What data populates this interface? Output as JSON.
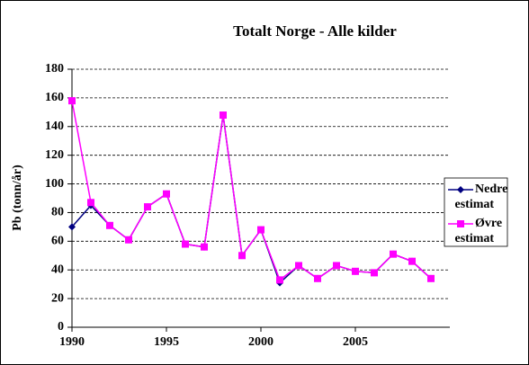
{
  "chart_data": {
    "type": "line",
    "title": "Totalt Norge - Alle kilder",
    "ylabel": "Pb (tonn/år)",
    "x": [
      1990,
      1991,
      1992,
      1993,
      1994,
      1995,
      1996,
      1997,
      1998,
      1999,
      2000,
      2001,
      2002,
      2003,
      2004,
      2005,
      2006,
      2007,
      2008,
      2009
    ],
    "series": [
      {
        "name": "Nedre estimat",
        "color": "#000080",
        "marker": "diamond",
        "values": [
          70,
          85,
          71,
          61,
          84,
          93,
          58,
          56,
          148,
          50,
          68,
          31,
          43,
          34,
          43,
          39,
          38,
          51,
          46,
          34
        ]
      },
      {
        "name": "Øvre estimat",
        "color": "#ff00ff",
        "marker": "square",
        "values": [
          158,
          87,
          71,
          61,
          84,
          93,
          58,
          56,
          148,
          50,
          68,
          33,
          43,
          34,
          43,
          39,
          38,
          51,
          46,
          34
        ]
      }
    ],
    "xlim": [
      1990,
      2010
    ],
    "xticks": [
      1990,
      1995,
      2000,
      2005
    ],
    "ylim": [
      0,
      180
    ],
    "yticks": [
      0,
      20,
      40,
      60,
      80,
      100,
      120,
      140,
      160,
      180
    ],
    "grid": true,
    "legend": "right"
  }
}
